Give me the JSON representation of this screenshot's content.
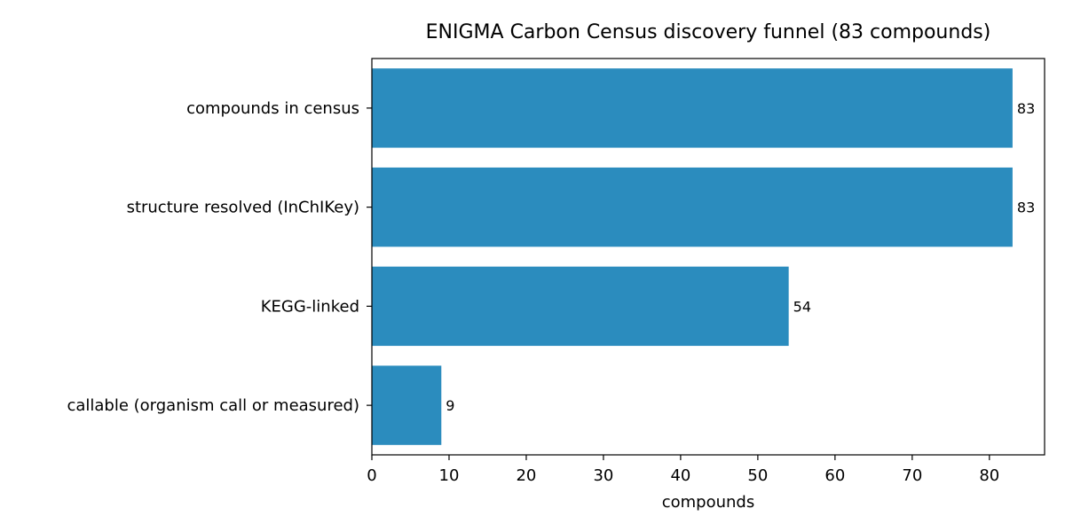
{
  "chart_data": {
    "type": "bar",
    "orientation": "horizontal",
    "title": "ENIGMA Carbon Census discovery funnel (83 compounds)",
    "xlabel": "compounds",
    "ylabel": "",
    "categories": [
      "compounds in census",
      "structure resolved (InChIKey)",
      "KEGG-linked",
      "callable (organism call or measured)"
    ],
    "values": [
      83,
      83,
      54,
      9
    ],
    "data_labels": [
      "83",
      "83",
      "54",
      "9"
    ],
    "xlim": [
      0,
      87.15
    ],
    "xticks": [
      0,
      10,
      20,
      30,
      40,
      50,
      60,
      70,
      80
    ],
    "bar_color": "#2b8cbe",
    "grid": false,
    "legend": "none"
  }
}
